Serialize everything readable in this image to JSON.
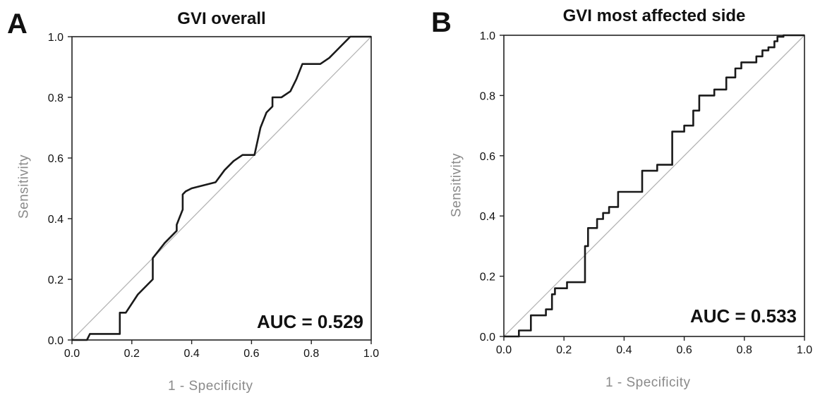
{
  "chart_data": [
    {
      "panel_letter": "A",
      "type": "line",
      "title": "GVI overall",
      "xlabel": "1 - Specificity",
      "ylabel": "Sensitivity",
      "xlim": [
        0,
        1
      ],
      "ylim": [
        0,
        1
      ],
      "xticks": [
        "0.0",
        "0.2",
        "0.4",
        "0.6",
        "0.8",
        "1.0"
      ],
      "yticks": [
        "0.0",
        "0.2",
        "0.4",
        "0.6",
        "0.8",
        "1.0"
      ],
      "annotation": "AUC = 0.529",
      "reference_line": "diagonal",
      "series": [
        {
          "x": [
            0.0,
            0.05,
            0.06,
            0.07,
            0.16,
            0.16,
            0.18,
            0.22,
            0.27,
            0.27,
            0.31,
            0.35,
            0.35,
            0.37,
            0.37,
            0.38,
            0.4,
            0.48,
            0.51,
            0.54,
            0.57,
            0.61,
            0.63,
            0.65,
            0.67,
            0.67,
            0.7,
            0.73,
            0.75,
            0.77,
            0.83,
            0.86,
            0.88,
            0.91,
            0.92,
            0.93,
            1.0
          ],
          "y": [
            0.0,
            0.0,
            0.02,
            0.02,
            0.02,
            0.09,
            0.09,
            0.15,
            0.2,
            0.27,
            0.32,
            0.36,
            0.38,
            0.43,
            0.48,
            0.49,
            0.5,
            0.52,
            0.56,
            0.59,
            0.61,
            0.61,
            0.7,
            0.75,
            0.77,
            0.8,
            0.8,
            0.82,
            0.86,
            0.91,
            0.91,
            0.93,
            0.95,
            0.98,
            0.99,
            1.0,
            1.0
          ]
        }
      ]
    },
    {
      "panel_letter": "B",
      "type": "line",
      "title": "GVI most affected side",
      "xlabel": "1 - Specificity",
      "ylabel": "Sensitivity",
      "xlim": [
        0,
        1
      ],
      "ylim": [
        0,
        1
      ],
      "xticks": [
        "0.0",
        "0.2",
        "0.4",
        "0.6",
        "0.8",
        "1.0"
      ],
      "yticks": [
        "0.0",
        "0.2",
        "0.4",
        "0.6",
        "0.8",
        "1.0"
      ],
      "annotation": "AUC = 0.533",
      "reference_line": "diagonal",
      "series": [
        {
          "x": [
            0.0,
            0.05,
            0.05,
            0.09,
            0.09,
            0.14,
            0.14,
            0.16,
            0.16,
            0.17,
            0.17,
            0.21,
            0.21,
            0.27,
            0.27,
            0.28,
            0.28,
            0.31,
            0.31,
            0.33,
            0.33,
            0.35,
            0.35,
            0.38,
            0.38,
            0.46,
            0.46,
            0.51,
            0.51,
            0.56,
            0.56,
            0.6,
            0.6,
            0.63,
            0.63,
            0.65,
            0.65,
            0.7,
            0.7,
            0.74,
            0.74,
            0.77,
            0.77,
            0.79,
            0.79,
            0.84,
            0.84,
            0.86,
            0.86,
            0.88,
            0.88,
            0.9,
            0.9,
            0.91,
            0.91,
            0.93,
            0.93,
            1.0
          ],
          "y": [
            0.0,
            0.0,
            0.02,
            0.02,
            0.07,
            0.07,
            0.09,
            0.09,
            0.14,
            0.14,
            0.16,
            0.16,
            0.18,
            0.18,
            0.3,
            0.3,
            0.36,
            0.36,
            0.39,
            0.39,
            0.41,
            0.41,
            0.43,
            0.43,
            0.48,
            0.48,
            0.55,
            0.55,
            0.57,
            0.57,
            0.68,
            0.68,
            0.7,
            0.7,
            0.75,
            0.75,
            0.8,
            0.8,
            0.82,
            0.82,
            0.86,
            0.86,
            0.89,
            0.89,
            0.91,
            0.91,
            0.93,
            0.93,
            0.95,
            0.95,
            0.96,
            0.96,
            0.98,
            0.98,
            0.995,
            0.995,
            1.0,
            1.0
          ]
        }
      ]
    }
  ]
}
